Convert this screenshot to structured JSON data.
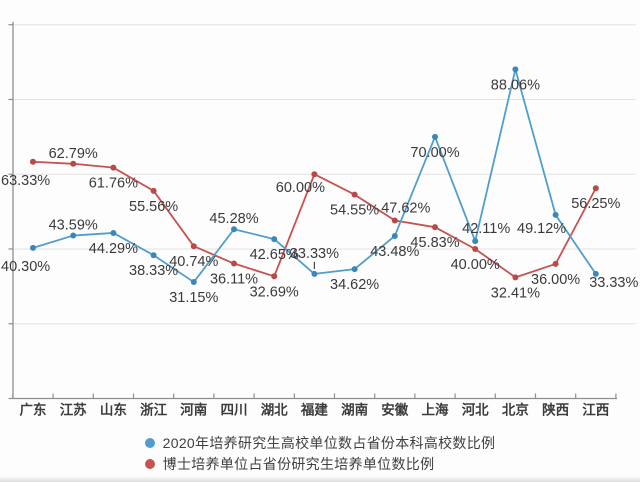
{
  "chart_data": {
    "type": "line",
    "title": "",
    "categories": [
      "广东",
      "江苏",
      "山东",
      "浙江",
      "河南",
      "四川",
      "湖北",
      "福建",
      "湖南",
      "安徽",
      "上海",
      "河北",
      "北京",
      "陕西",
      "江西"
    ],
    "series": [
      {
        "name": "2020年培养研究生高校单位数占省份本科高校数比例",
        "color": "#519dce",
        "point_color": "#3c87ba",
        "values": [
          40.3,
          43.59,
          44.29,
          38.33,
          31.15,
          45.28,
          42.65,
          33.33,
          34.62,
          43.48,
          70.0,
          42.11,
          88.06,
          49.12,
          33.33
        ],
        "labels": [
          "40.30%",
          "43.59%",
          "44.29%",
          "38.33%",
          "31.15%",
          "45.28%",
          "42.65%",
          "33.33%",
          "34.62%",
          "43.48%",
          "70.00%",
          "42.11%",
          "88.06%",
          "49.12%",
          "33.33%"
        ],
        "label_pos": [
          "edge-below",
          "above",
          "below",
          "below",
          "below",
          "above",
          "below",
          "above-leader",
          "below",
          "below",
          "below",
          "above-r",
          "below",
          "below-l",
          "right-below"
        ]
      },
      {
        "name": "博士培养单位占省份研究生培养单位数比例",
        "color": "#c75250",
        "point_color": "#b94946",
        "values": [
          63.33,
          62.79,
          61.76,
          55.56,
          40.74,
          36.11,
          32.69,
          60.0,
          54.55,
          47.62,
          45.83,
          40.0,
          32.41,
          36.0,
          56.25
        ],
        "labels": [
          "63.33%",
          "62.79%",
          "61.76%",
          "55.56%",
          "40.74%",
          "36.11%",
          "32.69%",
          "60.00%",
          "54.55%",
          "47.62%",
          "45.83%",
          "40.00%",
          "32.41%",
          "36.00%",
          "56.25%"
        ],
        "label_pos": [
          "edge-below",
          "above",
          "below",
          "below",
          "below",
          "below",
          "below",
          "below-l",
          "below",
          "above-r",
          "below",
          "below",
          "below",
          "below",
          "below"
        ]
      }
    ],
    "xlabel": "",
    "ylabel": "",
    "ylim": [
      0,
      100
    ],
    "ytick_step": 20,
    "grid": true,
    "y_axis_tick_labels_visible": false,
    "legend_position": "bottom"
  },
  "colors": {
    "grid": "#e3e3e3",
    "axis": "#8f8f8f",
    "tick": "#8f8f8f",
    "data_label_text": "#3a3a3a",
    "category_text": "#3c3c3c",
    "legend_text": "#404040",
    "leader_line": "#444444",
    "background": "#fdfdfd"
  }
}
